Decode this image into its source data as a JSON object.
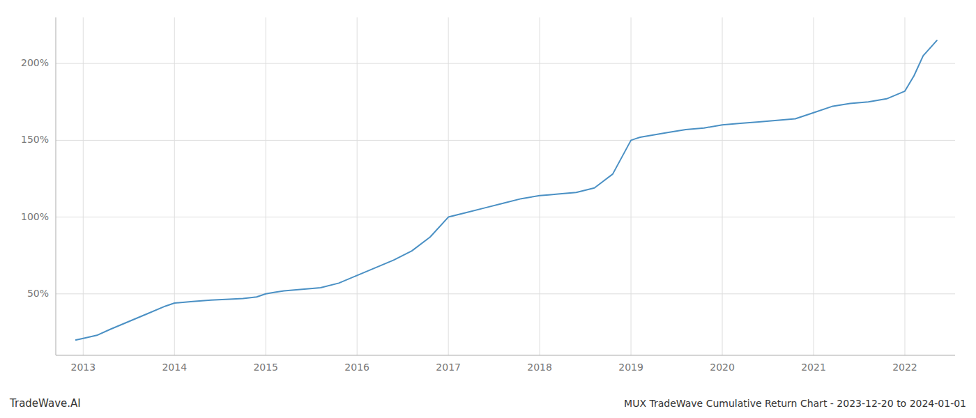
{
  "chart_data": {
    "type": "line",
    "title": "MUX TradeWave Cumulative Return Chart - 2023-12-20 to 2024-01-01",
    "annotations": [
      {
        "text": "TradeWave.AI"
      }
    ],
    "color": "#4a90c4",
    "grid": true,
    "x": [
      2012.92,
      2013.0,
      2013.15,
      2013.3,
      2013.5,
      2013.7,
      2013.9,
      2014.0,
      2014.2,
      2014.4,
      2014.6,
      2014.75,
      2014.9,
      2015.0,
      2015.1,
      2015.2,
      2015.4,
      2015.6,
      2015.8,
      2016.0,
      2016.2,
      2016.4,
      2016.6,
      2016.8,
      2017.0,
      2017.1,
      2017.2,
      2017.4,
      2017.6,
      2017.8,
      2018.0,
      2018.1,
      2018.2,
      2018.4,
      2018.6,
      2018.8,
      2019.0,
      2019.05,
      2019.1,
      2019.2,
      2019.4,
      2019.6,
      2019.8,
      2020.0,
      2020.2,
      2020.4,
      2020.6,
      2020.8,
      2021.0,
      2021.2,
      2021.4,
      2021.6,
      2021.8,
      2022.0,
      2022.1,
      2022.2,
      2022.35
    ],
    "values": [
      20,
      21,
      23,
      27,
      32,
      37,
      42,
      44,
      45,
      46,
      46.5,
      47,
      48,
      50,
      51,
      52,
      53,
      54,
      57,
      62,
      67,
      72,
      78,
      87,
      100,
      101.5,
      103,
      106,
      109,
      112,
      114,
      114.5,
      115,
      116,
      119,
      128,
      150,
      151,
      152,
      153,
      155,
      157,
      158,
      160,
      161,
      162,
      163,
      164,
      168,
      172,
      174,
      175,
      177,
      182,
      192,
      205,
      215
    ],
    "xlim": [
      2012.7,
      2022.55
    ],
    "xticks": [
      2013,
      2014,
      2015,
      2016,
      2017,
      2018,
      2019,
      2020,
      2021,
      2022
    ],
    "ylim": [
      10,
      230
    ],
    "yticks": [
      {
        "value": 50,
        "label": "50%"
      },
      {
        "value": 100,
        "label": "100%"
      },
      {
        "value": 150,
        "label": "150%"
      },
      {
        "value": 200,
        "label": "200%"
      }
    ]
  }
}
